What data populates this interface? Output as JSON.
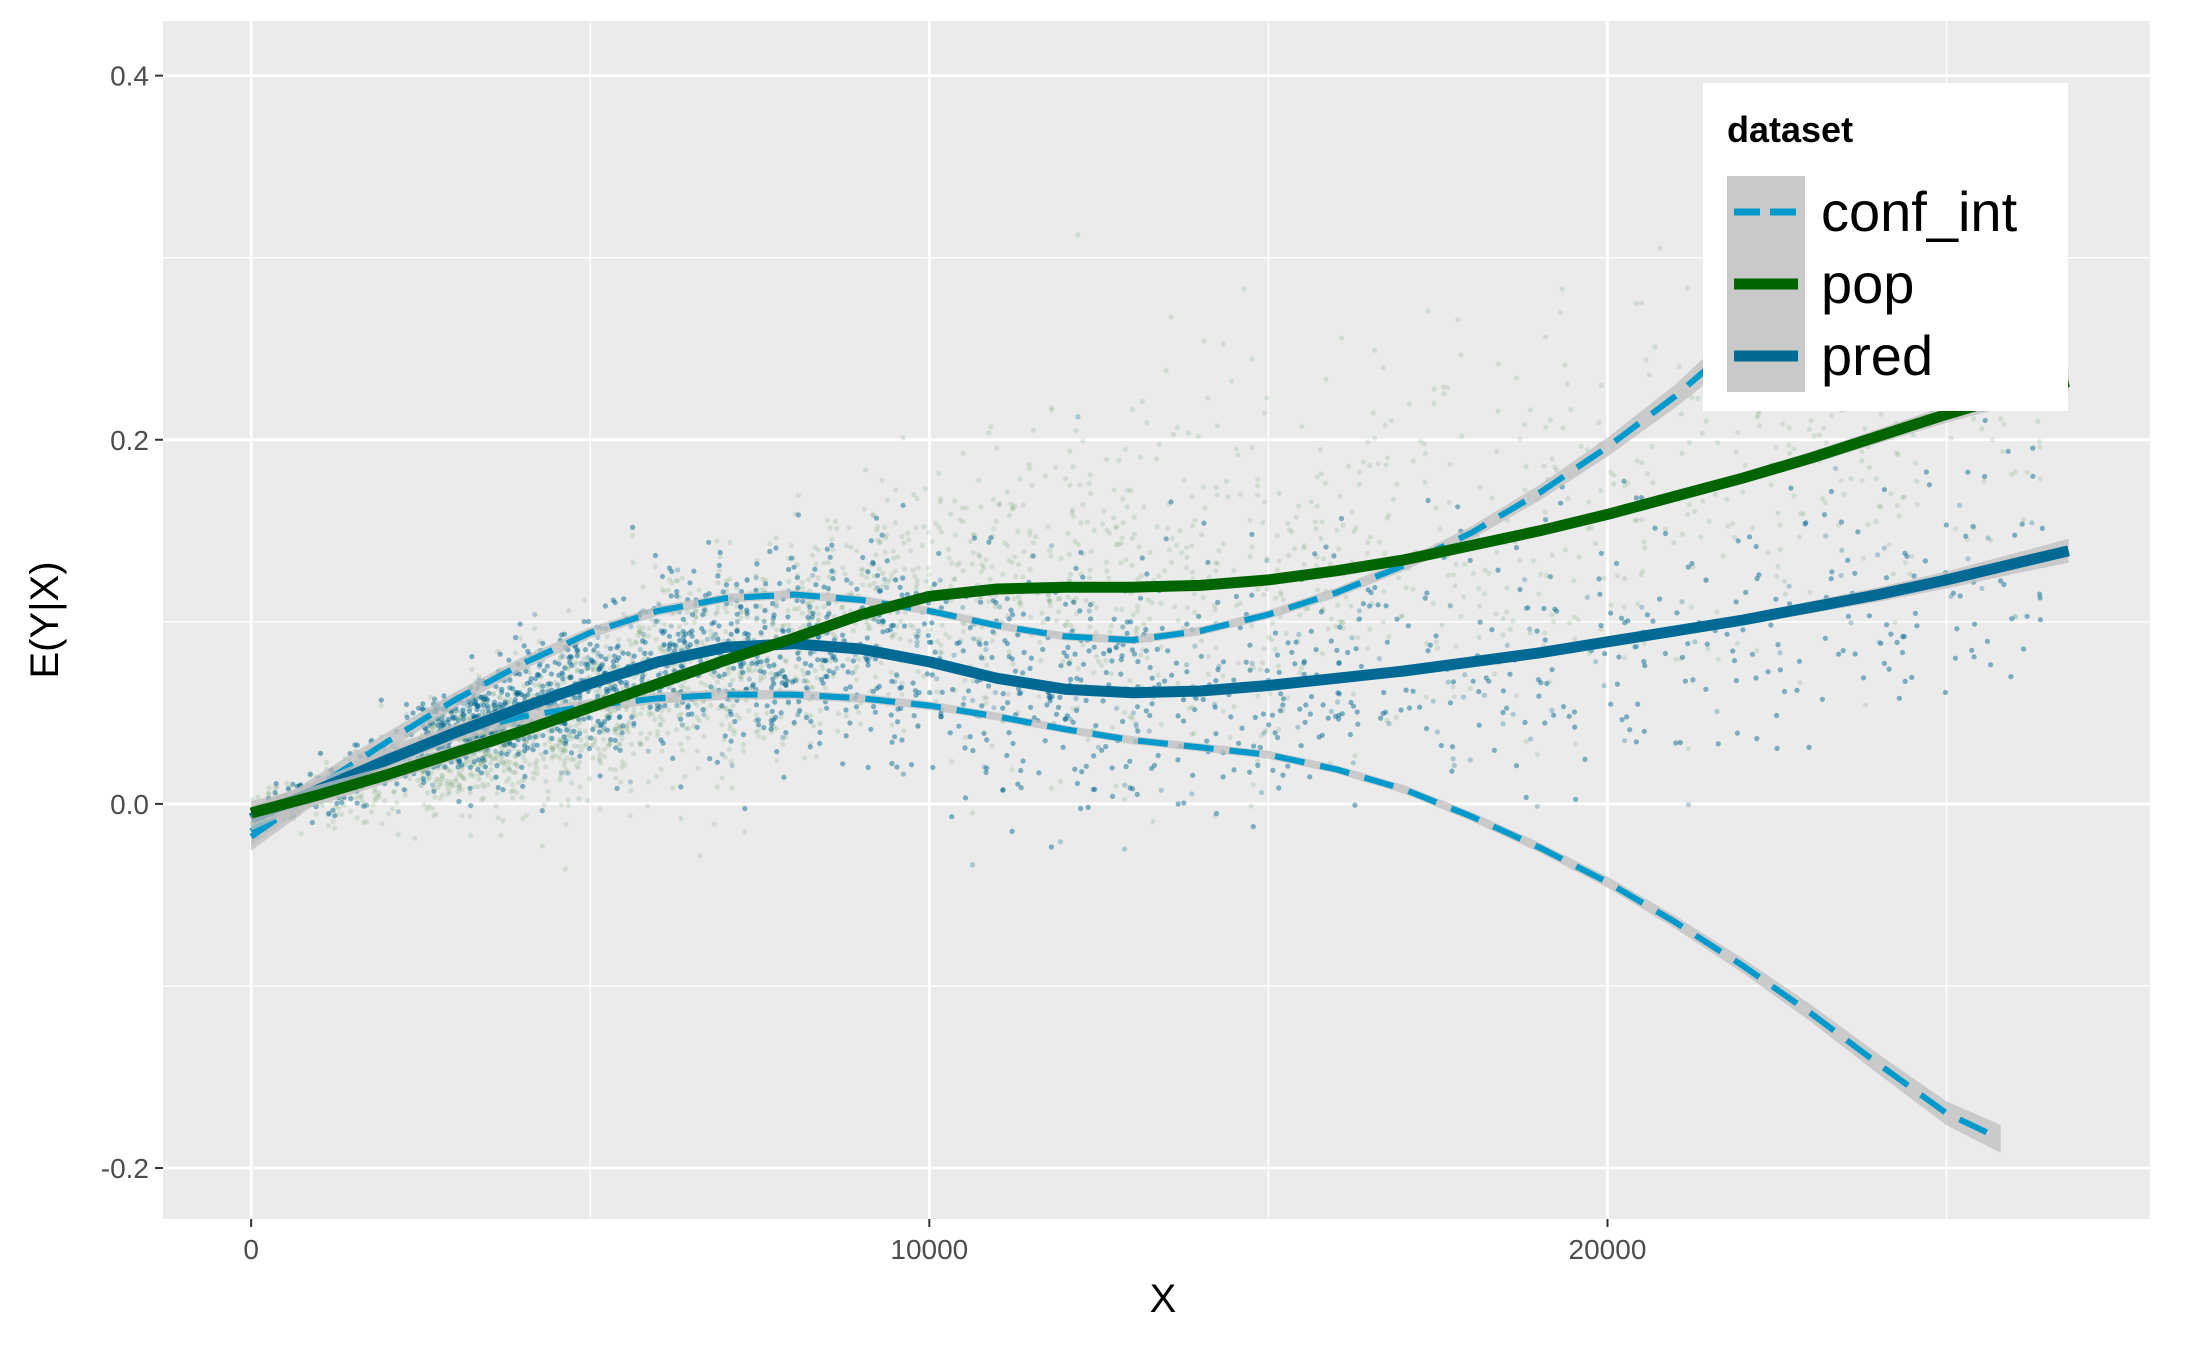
{
  "chart_data": {
    "type": "scatter",
    "title": "",
    "xlabel": "X",
    "ylabel": "E(Y|X)",
    "xlim": [
      -1300,
      28000
    ],
    "ylim": [
      -0.228,
      0.43
    ],
    "x_ticks": [
      0,
      10000,
      20000
    ],
    "x_tick_labels": [
      "0",
      "10000",
      "20000"
    ],
    "y_ticks": [
      -0.2,
      0.0,
      0.2,
      0.4
    ],
    "y_tick_labels": [
      "-0.2",
      "0.0",
      "0.2",
      "0.4"
    ],
    "grid": true,
    "legend": {
      "title": "dataset",
      "placement": "top-right",
      "entries": [
        {
          "label": "conf_int",
          "color": "#0099cc",
          "dashed": true
        },
        {
          "label": "pop",
          "color": "#006400",
          "dashed": false
        },
        {
          "label": "pred",
          "color": "#006994",
          "dashed": false
        }
      ]
    },
    "colors": {
      "panel": "#ebebeb",
      "grid": "#ffffff",
      "band": "#bfbfbf",
      "conf_int": "#0099cc",
      "pop": "#006400",
      "pred": "#006994"
    },
    "series": [
      {
        "name": "pop",
        "kind": "smooth",
        "x": [
          0,
          1000,
          2000,
          3000,
          4000,
          5000,
          6000,
          7000,
          8000,
          9000,
          10000,
          11000,
          12000,
          13000,
          14000,
          15000,
          16000,
          17000,
          18000,
          19000,
          20000,
          21000,
          22000,
          23000,
          24000,
          25000,
          26000,
          26800
        ],
        "y": [
          -0.005,
          0.005,
          0.016,
          0.028,
          0.04,
          0.053,
          0.066,
          0.079,
          0.091,
          0.104,
          0.114,
          0.118,
          0.119,
          0.119,
          0.12,
          0.123,
          0.128,
          0.134,
          0.142,
          0.15,
          0.159,
          0.169,
          0.179,
          0.19,
          0.202,
          0.214,
          0.225,
          0.232
        ]
      },
      {
        "name": "pred",
        "kind": "smooth",
        "x": [
          0,
          1000,
          2000,
          3000,
          4000,
          5000,
          6000,
          7000,
          8000,
          9000,
          10000,
          11000,
          12000,
          13000,
          14000,
          15000,
          16000,
          17000,
          18000,
          19000,
          20000,
          21000,
          22000,
          23000,
          24000,
          25000,
          26000,
          26800
        ],
        "y": [
          -0.008,
          0.008,
          0.024,
          0.039,
          0.053,
          0.066,
          0.078,
          0.086,
          0.088,
          0.085,
          0.078,
          0.069,
          0.063,
          0.061,
          0.062,
          0.065,
          0.069,
          0.073,
          0.078,
          0.083,
          0.089,
          0.095,
          0.101,
          0.108,
          0.115,
          0.123,
          0.132,
          0.139
        ]
      },
      {
        "name": "conf_int",
        "kind": "upper_bound",
        "x": [
          0,
          1000,
          2000,
          3000,
          4000,
          5000,
          6000,
          7000,
          8000,
          9000,
          10000,
          11000,
          12000,
          13000,
          14000,
          15000,
          16000,
          17000,
          18000,
          19000,
          20000,
          21000,
          21500
        ],
        "y": [
          -0.015,
          0.01,
          0.034,
          0.057,
          0.077,
          0.094,
          0.106,
          0.113,
          0.115,
          0.112,
          0.106,
          0.098,
          0.092,
          0.09,
          0.095,
          0.104,
          0.116,
          0.131,
          0.149,
          0.171,
          0.196,
          0.224,
          0.24
        ]
      },
      {
        "name": "conf_int",
        "kind": "lower_bound",
        "x": [
          0,
          1000,
          2000,
          3000,
          4000,
          5000,
          6000,
          7000,
          8000,
          9000,
          10000,
          11000,
          12000,
          13000,
          14000,
          15000,
          16000,
          17000,
          18000,
          19000,
          20000,
          21000,
          22000,
          23000,
          24000,
          25000,
          25800
        ],
        "y": [
          -0.018,
          0.008,
          0.026,
          0.039,
          0.048,
          0.054,
          0.058,
          0.06,
          0.06,
          0.058,
          0.054,
          0.048,
          0.041,
          0.035,
          0.031,
          0.027,
          0.019,
          0.008,
          -0.007,
          -0.024,
          -0.043,
          -0.065,
          -0.089,
          -0.115,
          -0.143,
          -0.17,
          -0.184
        ]
      }
    ],
    "scatter_clouds": [
      {
        "name": "pop",
        "color": "#006400",
        "note": "faint scattered points"
      },
      {
        "name": "pred",
        "color": "#006994",
        "note": "dense scattered points"
      }
    ]
  }
}
